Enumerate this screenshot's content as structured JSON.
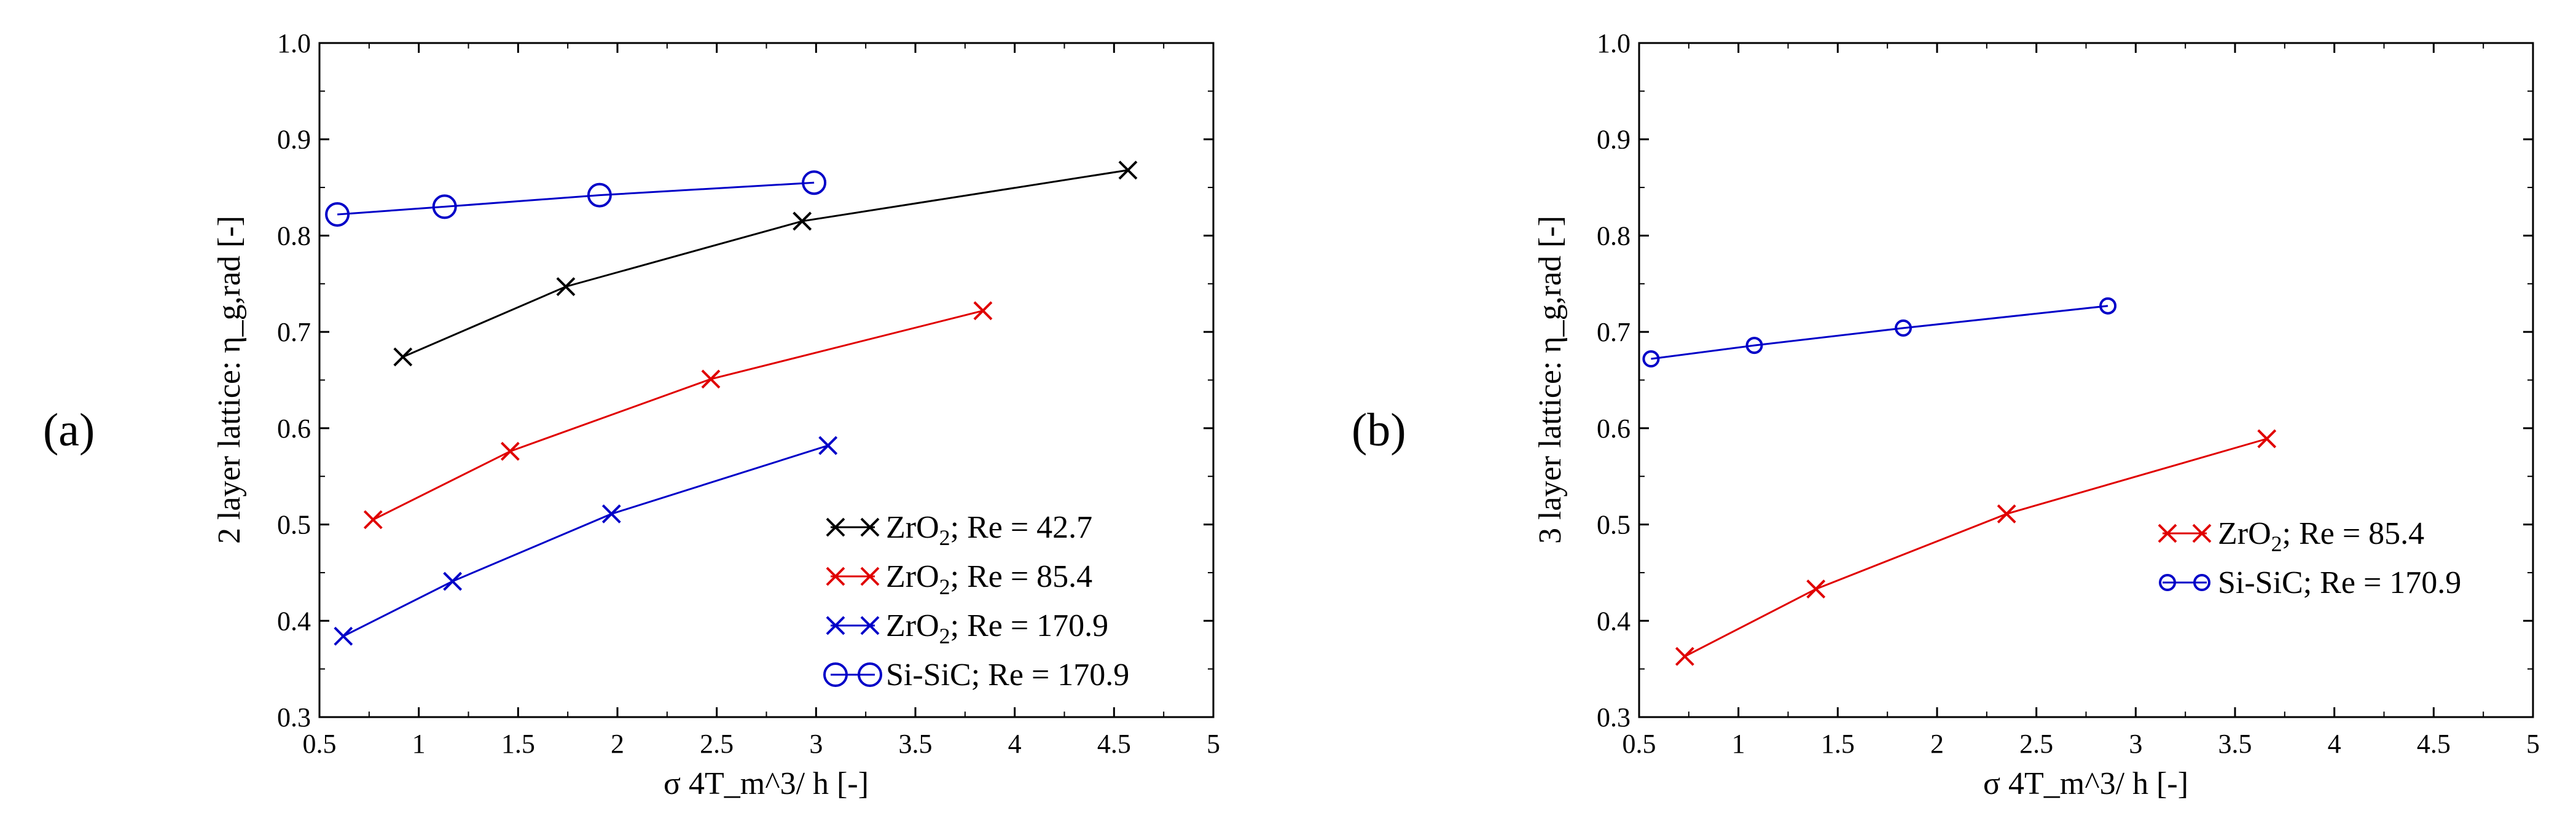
{
  "chart_data": [
    {
      "type": "line",
      "panel_label": "(a)",
      "xlabel": "σ 4T_m^3/ h  [-]",
      "ylabel": "2 layer lattice: η_g,rad [-]",
      "xlim": [
        0.5,
        5
      ],
      "ylim": [
        0.3,
        1.0
      ],
      "xticks": [
        "0.5",
        "1",
        "1.5",
        "2",
        "2.5",
        "3",
        "3.5",
        "4",
        "4.5",
        "5"
      ],
      "yticks": [
        "0.3",
        "0.4",
        "0.5",
        "0.6",
        "0.7",
        "0.8",
        "0.9",
        "1.0"
      ],
      "legend_position": "bottom-right",
      "series": [
        {
          "name": "ZrO2; Re = 42.7",
          "legend_parts": [
            "ZrO",
            "2",
            "; Re = 42.7"
          ],
          "color": "#000000",
          "marker": "x",
          "x": [
            0.92,
            1.74,
            2.93,
            4.57
          ],
          "y": [
            0.674,
            0.747,
            0.815,
            0.868
          ]
        },
        {
          "name": "ZrO2; Re = 85.4",
          "legend_parts": [
            "ZrO",
            "2",
            "; Re = 85.4"
          ],
          "color": "#e00000",
          "marker": "x",
          "x": [
            0.77,
            1.46,
            2.47,
            3.84
          ],
          "y": [
            0.505,
            0.576,
            0.651,
            0.722
          ]
        },
        {
          "name": "ZrO2; Re = 170.9",
          "legend_parts": [
            "ZrO",
            "2",
            "; Re = 170.9"
          ],
          "color": "#0000c8",
          "marker": "x",
          "x": [
            0.62,
            1.17,
            1.97,
            3.06
          ],
          "y": [
            0.384,
            0.441,
            0.511,
            0.582
          ]
        },
        {
          "name": "Si-SiC; Re = 170.9",
          "legend_parts": [
            "Si-SiC; Re = 170.9",
            "",
            ""
          ],
          "color": "#0000c8",
          "marker": "circle-large",
          "x": [
            0.59,
            1.13,
            1.91,
            2.99
          ],
          "y": [
            0.822,
            0.83,
            0.842,
            0.855
          ]
        }
      ]
    },
    {
      "type": "line",
      "panel_label": "(b)",
      "xlabel": "σ 4T_m^3/ h  [-]",
      "ylabel": "3 layer lattice: η_g,rad [-]",
      "xlim": [
        0.5,
        5
      ],
      "ylim": [
        0.3,
        1.0
      ],
      "xticks": [
        "0.5",
        "1",
        "1.5",
        "2",
        "2.5",
        "3",
        "3.5",
        "4",
        "4.5",
        "5"
      ],
      "yticks": [
        "0.3",
        "0.4",
        "0.5",
        "0.6",
        "0.7",
        "0.8",
        "0.9",
        "1.0"
      ],
      "legend_position": "middle-right",
      "series": [
        {
          "name": "ZrO2; Re = 85.4",
          "legend_parts": [
            "ZrO",
            "2",
            "; Re = 85.4"
          ],
          "color": "#e00000",
          "marker": "x",
          "x": [
            0.73,
            1.39,
            2.35,
            3.66
          ],
          "y": [
            0.363,
            0.433,
            0.511,
            0.589
          ]
        },
        {
          "name": "Si-SiC; Re = 170.9",
          "legend_parts": [
            "Si-SiC; Re = 170.9",
            "",
            ""
          ],
          "color": "#0000c8",
          "marker": "circle-small",
          "x": [
            0.56,
            1.08,
            1.83,
            2.86
          ],
          "y": [
            0.672,
            0.686,
            0.704,
            0.727
          ]
        }
      ]
    }
  ]
}
